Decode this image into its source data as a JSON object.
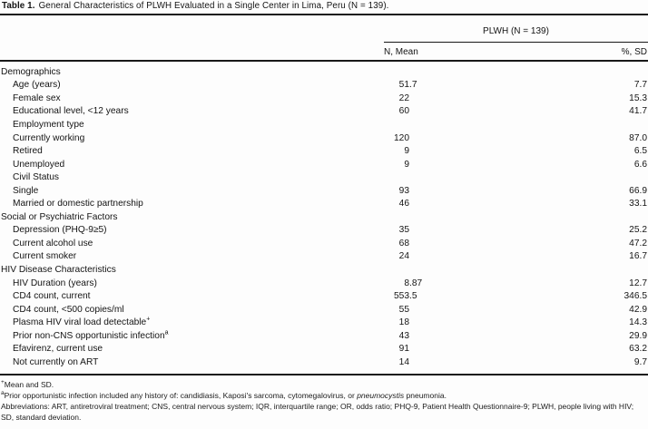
{
  "title": {
    "label": "Table 1.",
    "text": "General Characteristics of PLWH Evaluated in a Single Center in Lima, Peru (N = 139)."
  },
  "header": {
    "group": "PLWH (N = 139)",
    "col_n": "N, Mean",
    "col_pct": "%, SD"
  },
  "rows": [
    {
      "label": "Demographics",
      "sup": "",
      "indent": 0,
      "n": "",
      "pct": ""
    },
    {
      "label": "Age (years)",
      "sup": "",
      "indent": 1,
      "n": "51.7",
      "pct": "7.7"
    },
    {
      "label": "Female sex",
      "sup": "",
      "indent": 1,
      "n": "22",
      "pct": "15.3"
    },
    {
      "label": "Educational level, <12 years",
      "sup": "",
      "indent": 1,
      "n": "60",
      "pct": "41.7"
    },
    {
      "label": "Employment type",
      "sup": "",
      "indent": 1,
      "n": "",
      "pct": ""
    },
    {
      "label": "Currently working",
      "sup": "",
      "indent": 1,
      "n": "120",
      "pct": "87.0"
    },
    {
      "label": "Retired",
      "sup": "",
      "indent": 1,
      "n": "9",
      "pct": "6.5"
    },
    {
      "label": "Unemployed",
      "sup": "",
      "indent": 1,
      "n": "9",
      "pct": "6.6"
    },
    {
      "label": "Civil Status",
      "sup": "",
      "indent": 1,
      "n": "",
      "pct": ""
    },
    {
      "label": "Single",
      "sup": "",
      "indent": 1,
      "n": "93",
      "pct": "66.9"
    },
    {
      "label": "Married or domestic partnership",
      "sup": "",
      "indent": 1,
      "n": "46",
      "pct": "33.1"
    },
    {
      "label": "Social or Psychiatric Factors",
      "sup": "",
      "indent": 0,
      "n": "",
      "pct": ""
    },
    {
      "label": "Depression (PHQ-9≥5)",
      "sup": "",
      "indent": 1,
      "n": "35",
      "pct": "25.2"
    },
    {
      "label": "Current alcohol use",
      "sup": "",
      "indent": 1,
      "n": "68",
      "pct": "47.2"
    },
    {
      "label": "Current smoker",
      "sup": "",
      "indent": 1,
      "n": "24",
      "pct": "16.7"
    },
    {
      "label": "HIV Disease Characteristics",
      "sup": "",
      "indent": 0,
      "n": "",
      "pct": ""
    },
    {
      "label": "HIV Duration (years)",
      "sup": "",
      "indent": 1,
      "n": "8.87",
      "pct": "12.7"
    },
    {
      "label": "CD4 count, current",
      "sup": "",
      "indent": 1,
      "n": "553.5",
      "pct": "346.5"
    },
    {
      "label": "CD4 count, <500 copies/ml",
      "sup": "",
      "indent": 1,
      "n": "55",
      "pct": "42.9"
    },
    {
      "label": "Plasma HIV viral load detectable",
      "sup": "+",
      "indent": 1,
      "n": "18",
      "pct": "14.3"
    },
    {
      "label": "Prior non-CNS opportunistic infection",
      "sup": "a",
      "indent": 1,
      "n": "43",
      "pct": "29.9"
    },
    {
      "label": "Efavirenz, current use",
      "sup": "",
      "indent": 1,
      "n": "91",
      "pct": "63.2"
    },
    {
      "label": "Not currently on ART",
      "sup": "",
      "indent": 1,
      "n": "14",
      "pct": "9.7"
    }
  ],
  "footnotes": {
    "fn1": {
      "sup": "+",
      "text": "Mean and SD."
    },
    "fn2": {
      "sup": "a",
      "before": "Prior opportunistic infection included any history of: candidiasis, Kaposi's sarcoma, cytomegalovirus, or ",
      "italic": "pneumocystis",
      "after": " pneumonia."
    },
    "fn3": "Abbreviations: ART, antiretroviral treatment; CNS, central nervous system; IQR, interquartile range; OR, odds ratio; PHQ-9, Patient Health Questionnaire-9; PLWH, people living with HIV; SD, standard deviation."
  },
  "colors": {
    "text": "#141414",
    "rule": "#181818",
    "background": "#fdfdfd"
  }
}
